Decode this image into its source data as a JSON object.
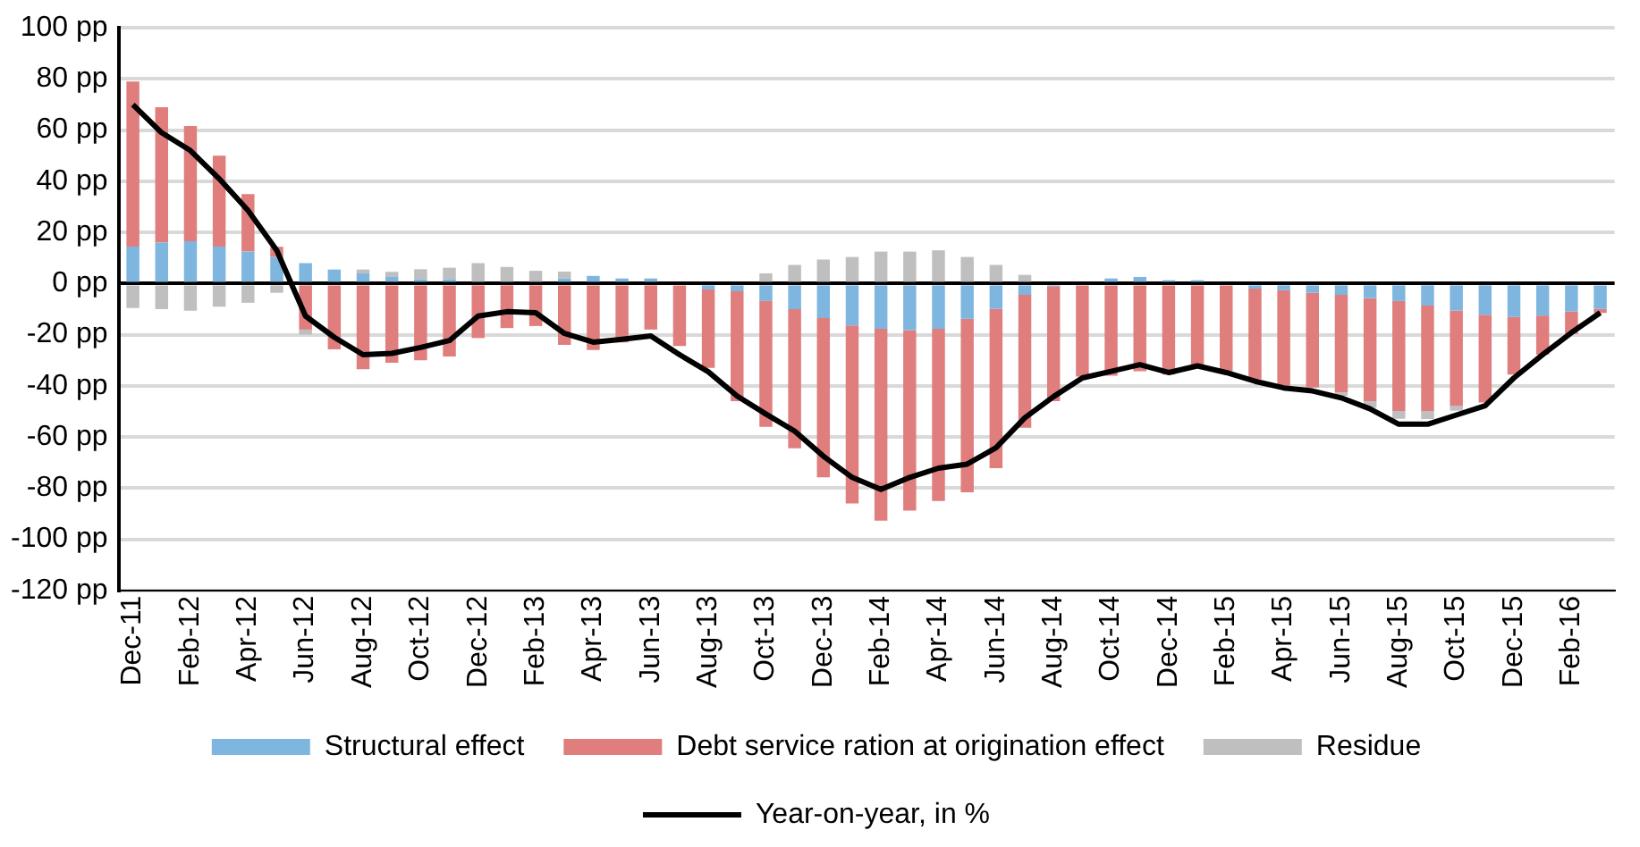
{
  "chart_data": {
    "type": "bar",
    "stacked": true,
    "legend": "bottom",
    "grid": "y",
    "marker": "none",
    "categories": [
      "Dec-11",
      null,
      "Feb-12",
      null,
      "Apr-12",
      null,
      "Jun-12",
      null,
      "Aug-12",
      null,
      "Oct-12",
      null,
      "Dec-12",
      null,
      "Feb-13",
      null,
      "Apr-13",
      null,
      "Jun-13",
      null,
      "Aug-13",
      null,
      "Oct-13",
      null,
      "Dec-13",
      null,
      "Feb-14",
      null,
      "Apr-14",
      null,
      "Jun-14",
      null,
      "Aug-14",
      null,
      "Oct-14",
      null,
      "Dec-14",
      null,
      "Feb-15",
      null,
      "Apr-15",
      null,
      "Jun-15",
      null,
      "Aug-15",
      null,
      "Oct-15",
      null,
      "Dec-15",
      null,
      "Feb-16",
      null
    ],
    "ylim": [
      -120,
      100
    ],
    "yticks": [
      {
        "value": -120,
        "label": "-120 pp"
      },
      {
        "value": -100,
        "label": "-100 pp"
      },
      {
        "value": -80,
        "label": "-80 pp"
      },
      {
        "value": -60,
        "label": "-60 pp"
      },
      {
        "value": -40,
        "label": "-40 pp"
      },
      {
        "value": -20,
        "label": "-20 pp"
      },
      {
        "value": 0,
        "label": "0 pp"
      },
      {
        "value": 20,
        "label": "20 pp"
      },
      {
        "value": 40,
        "label": "40 pp"
      },
      {
        "value": 60,
        "label": "60 pp"
      },
      {
        "value": 80,
        "label": "80 pp"
      },
      {
        "value": 100,
        "label": "100 pp"
      }
    ],
    "series": [
      {
        "name": "Structural effect",
        "color": "#7eb6e0",
        "values": [
          14.5,
          16,
          16.6,
          14.5,
          12.5,
          10.4,
          8,
          5.5,
          4,
          2.6,
          1.6,
          1.6,
          null,
          null,
          null,
          2,
          3,
          2,
          2,
          null,
          -2.3,
          -3,
          -6.8,
          -10,
          -13.5,
          -16.4,
          -17.7,
          -18.2,
          -17.7,
          -13.8,
          -9.9,
          -4.4,
          -1,
          null,
          2,
          2.6,
          1.3,
          1.3,
          null,
          -2,
          -2.6,
          -3.6,
          -4.4,
          -5.7,
          -6.8,
          -8.6,
          -10.6,
          -12.2,
          -13,
          -12.5,
          -10.9,
          -9.9
        ]
      },
      {
        "name": "Debt service ration at origination effect",
        "color": "#e07e7e",
        "values": [
          64.5,
          53,
          45,
          35.5,
          22.5,
          4,
          -18,
          -25.7,
          -33.5,
          -31,
          -30,
          -28.5,
          -21.3,
          -17.4,
          -16.6,
          -24,
          -26,
          -23,
          -18,
          -24.4,
          -30.7,
          -43,
          -49.2,
          -54.4,
          -62.3,
          -69.6,
          -75,
          -70.6,
          -67.3,
          -67.8,
          -62.3,
          -52,
          -45,
          -36.4,
          -36,
          -34.3,
          -35.6,
          -33,
          -34.3,
          -35.4,
          -37.4,
          -37.1,
          -38.2,
          -40.3,
          -43,
          -41.3,
          -37.1,
          -34.3,
          -22.6,
          -15.3,
          -8.8,
          -1.6
        ]
      },
      {
        "name": "Residue",
        "color": "#bfbfbf",
        "values": [
          -9.6,
          -10,
          -10.6,
          -9,
          -7.5,
          -3.6,
          -2,
          null,
          1.5,
          2,
          4,
          4.6,
          8,
          6.5,
          5,
          2.7,
          null,
          null,
          null,
          null,
          null,
          null,
          4,
          7.3,
          9.4,
          10.4,
          12.5,
          12.5,
          13,
          10.4,
          7.3,
          3.4,
          null,
          null,
          null,
          null,
          null,
          null,
          null,
          null,
          null,
          null,
          -1.3,
          -2.6,
          -3.1,
          -3.1,
          -2,
          null,
          null,
          null,
          null,
          null
        ]
      },
      {
        "name": "Year-on-year, in %",
        "type": "line",
        "color": "#000000",
        "values": [
          70,
          59,
          52,
          41,
          28.6,
          13,
          -12.7,
          -21,
          -27.8,
          -27.3,
          -25,
          -22.3,
          -12.7,
          -11,
          -11.4,
          -19.5,
          -22.9,
          -21.8,
          -20.5,
          -27.8,
          -34.5,
          -44,
          -51,
          -57.7,
          -67.5,
          -75.8,
          -80.5,
          -75.8,
          -72.2,
          -70.6,
          -64.2,
          -52.5,
          -44.2,
          -36.9,
          -34.3,
          -31.7,
          -34.8,
          -32.2,
          -34.8,
          -38.2,
          -40.8,
          -42,
          -44.7,
          -49,
          -55,
          -55,
          -51.4,
          -47.8,
          -36.9,
          -27.8,
          -19.2,
          -11.4
        ]
      }
    ]
  }
}
